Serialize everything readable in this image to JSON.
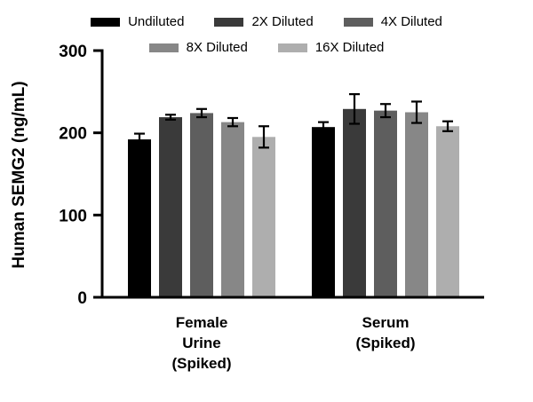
{
  "chart_data": {
    "type": "bar",
    "title": "",
    "ylabel": "Human SEMG2 (ng/mL)",
    "xlabel": "",
    "ylim": [
      0,
      300
    ],
    "yticks": [
      0,
      100,
      200,
      300
    ],
    "grid": false,
    "legend_position": "top",
    "categories": [
      [
        "Female",
        "Urine",
        "(Spiked)"
      ],
      [
        "Serum",
        "(Spiked)"
      ]
    ],
    "series": [
      {
        "name": "Undiluted",
        "color": "#000000",
        "values": [
          192,
          207
        ],
        "errors": [
          7,
          6
        ]
      },
      {
        "name": "2X Diluted",
        "color": "#3a3a3a",
        "values": [
          219,
          229
        ],
        "errors": [
          3,
          18
        ]
      },
      {
        "name": "4X Diluted",
        "color": "#5e5e5e",
        "values": [
          224,
          227
        ],
        "errors": [
          5,
          8
        ]
      },
      {
        "name": "8X Diluted",
        "color": "#878787",
        "values": [
          213,
          225
        ],
        "errors": [
          5,
          13
        ]
      },
      {
        "name": "16X Diluted",
        "color": "#aeaeae",
        "values": [
          195,
          208
        ],
        "errors": [
          13,
          6
        ]
      }
    ],
    "error_bar_color": "#000000",
    "axis_color": "#000000"
  }
}
